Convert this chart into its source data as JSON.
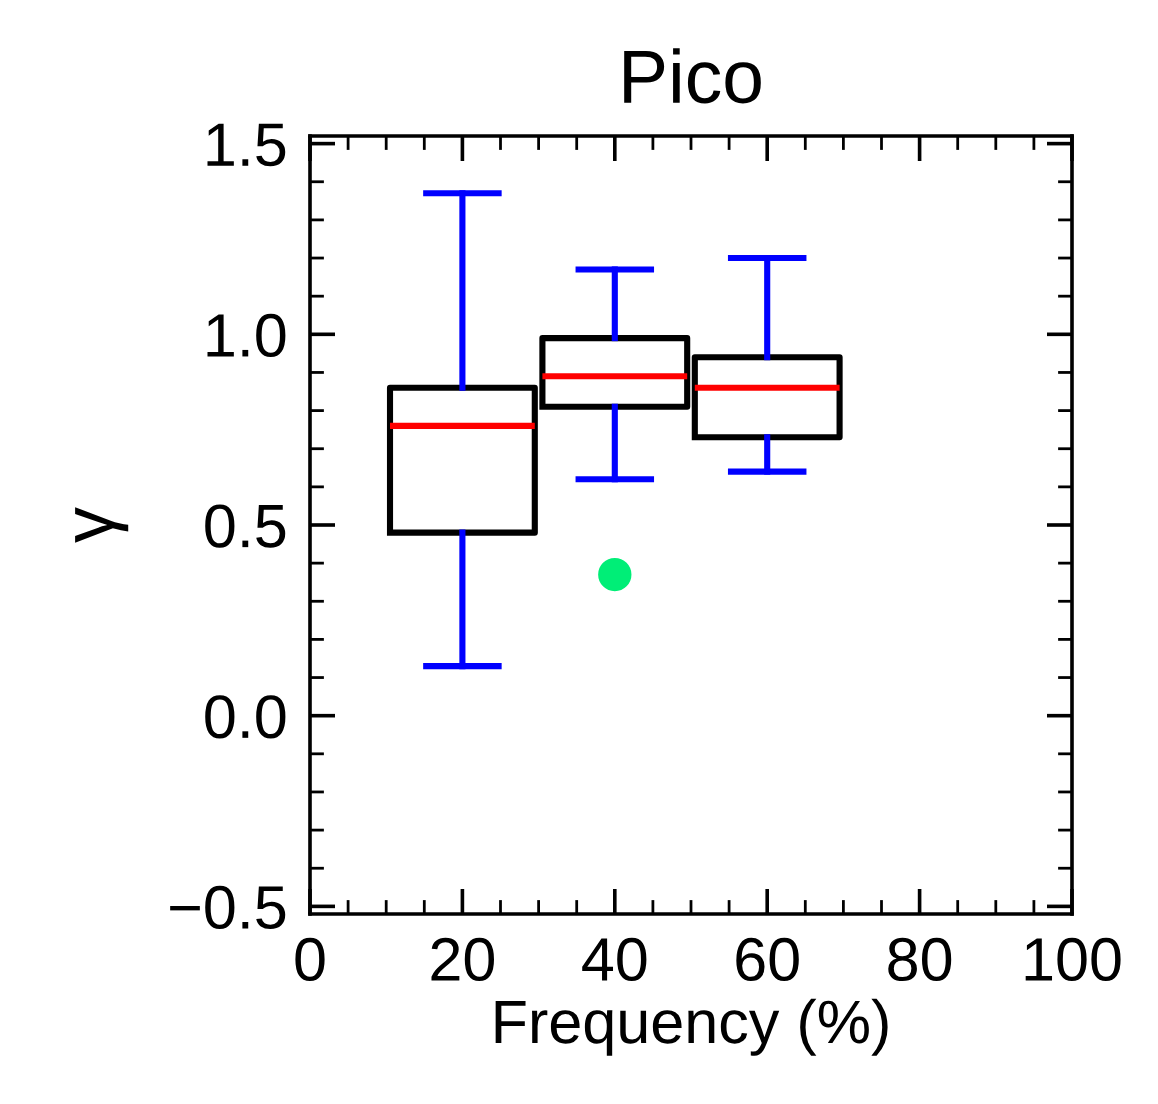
{
  "chart_data": {
    "type": "box",
    "title": "Pico",
    "xlabel": "Frequency (%)",
    "ylabel": "γ",
    "x": [
      20,
      40,
      60
    ],
    "boxes": [
      {
        "low": 0.13,
        "q1": 0.48,
        "median": 0.76,
        "q3": 0.86,
        "high": 1.37
      },
      {
        "low": 0.62,
        "q1": 0.81,
        "median": 0.89,
        "q3": 0.99,
        "high": 1.17,
        "outliers": [
          0.37
        ]
      },
      {
        "low": 0.64,
        "q1": 0.73,
        "median": 0.86,
        "q3": 0.94,
        "high": 1.2
      }
    ],
    "xlim": [
      0,
      100
    ],
    "xticks": [
      0,
      20,
      40,
      60,
      80,
      100
    ],
    "ylim": [
      -0.52,
      1.52
    ],
    "yticks": [
      {
        "value": -0.5,
        "label": "−0.5"
      },
      {
        "value": 0,
        "label": "0.0"
      },
      {
        "value": 0.5,
        "label": "0.5"
      },
      {
        "value": 1.0,
        "label": "1.0"
      },
      {
        "value": 1.5,
        "label": "1.5"
      }
    ],
    "grid": false,
    "legend": false
  }
}
